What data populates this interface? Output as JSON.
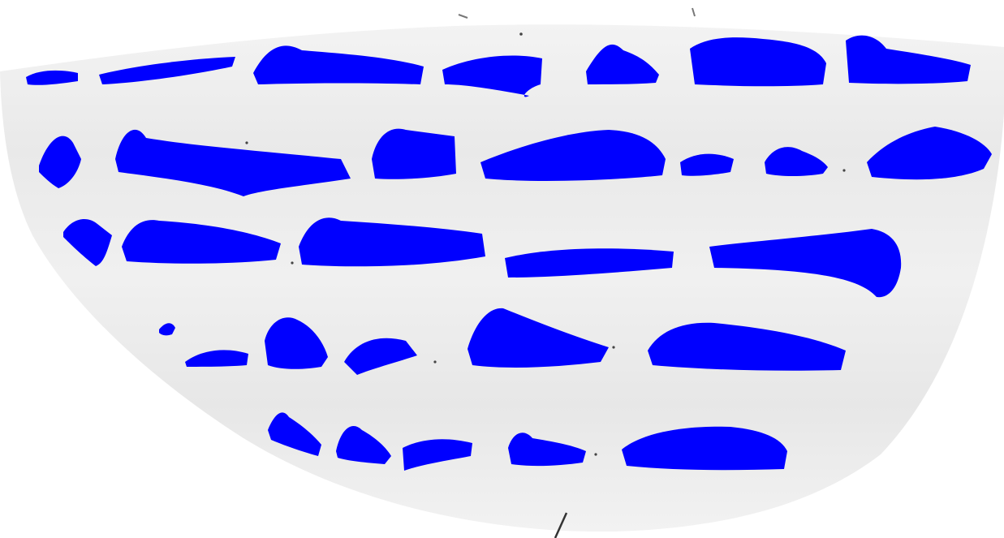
{
  "document": {
    "type": "handwritten-fragment",
    "redaction_color": "#0000ff",
    "paper_color": "#ededed",
    "ink_color": "#3a3a3a",
    "lines": [
      {
        "words": 6
      },
      {
        "words": 6
      },
      {
        "words": 5
      },
      {
        "words": 5
      },
      {
        "words": 4
      }
    ]
  }
}
